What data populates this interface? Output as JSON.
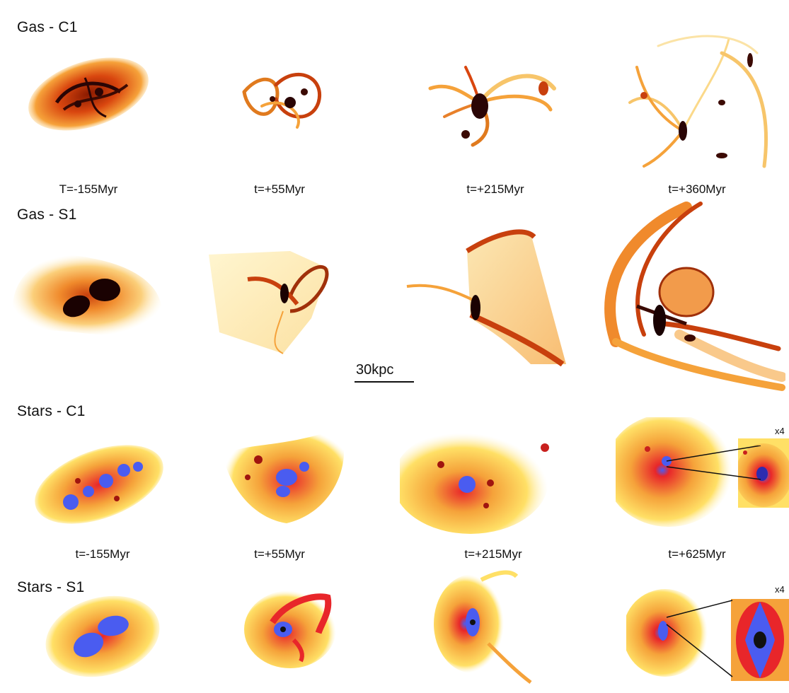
{
  "rows": [
    {
      "title": "Gas - C1",
      "times": [
        "T=-155Myr",
        "t=+55Myr",
        "t=+215Myr",
        "t=+360Myr"
      ]
    },
    {
      "title": "Gas - S1",
      "times": []
    },
    {
      "title": "Stars - C1",
      "times": [
        "t=-155Myr",
        "t=+55Myr",
        "t=+215Myr",
        "t=+625Myr"
      ]
    },
    {
      "title": "Stars - S1",
      "times": []
    }
  ],
  "scale_bar": "30kpc",
  "zoom_label": "x4",
  "colors": {
    "gas_light": "#fff3c4",
    "gas_mid": "#f7a53a",
    "gas_dark": "#c8400d",
    "gas_core": "#2a0505",
    "star_red": "#e8262a",
    "star_blue": "#4a5cf0",
    "star_yellow": "#ffe066"
  }
}
